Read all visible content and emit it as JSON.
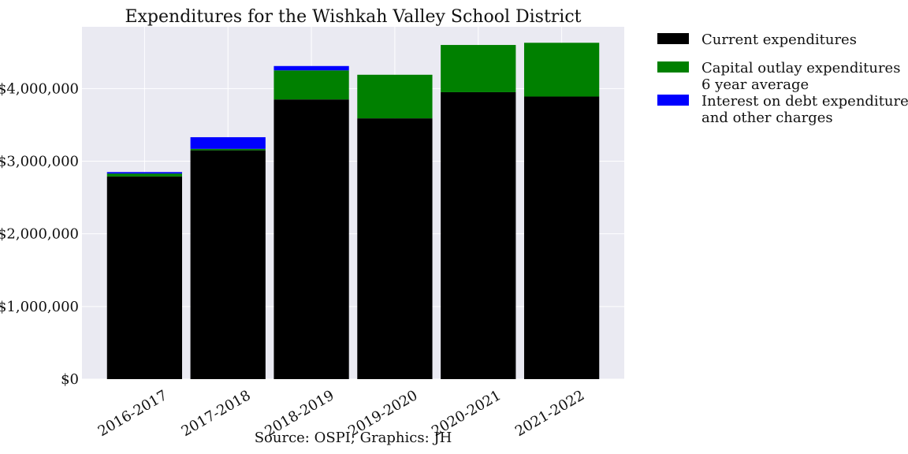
{
  "chart_data": {
    "type": "bar",
    "stacked": true,
    "title": "Expenditures for the Wishkah Valley School District",
    "caption": "Source: OSPI; Graphics: JH",
    "xlabel": "",
    "ylabel": "",
    "categories": [
      "2016-2017",
      "2017-2018",
      "2018-2019",
      "2019-2020",
      "2020-2021",
      "2021-2022"
    ],
    "series": [
      {
        "name_lines": [
          "Current expenditures"
        ],
        "color": "#000000",
        "values": [
          2790000,
          3150000,
          3850000,
          3590000,
          3950000,
          3890000
        ]
      },
      {
        "name_lines": [
          "Capital outlay expenditures",
          "6 year average"
        ],
        "color": "#008000",
        "values": [
          40000,
          20000,
          400000,
          600000,
          650000,
          740000
        ]
      },
      {
        "name_lines": [
          "Interest on debt expenditures",
          "and other charges"
        ],
        "color": "#0000ff",
        "values": [
          20000,
          160000,
          60000,
          0,
          0,
          0
        ]
      }
    ],
    "ylim": [
      0,
      4850000
    ],
    "yticks": [
      0,
      1000000,
      2000000,
      3000000,
      4000000
    ],
    "ytick_labels": [
      "$0",
      "$1,000,000",
      "$2,000,000",
      "$3,000,000",
      "$4,000,000"
    ],
    "grid": true,
    "legend_position": "outside-right",
    "background_color": "#eaeaf2"
  }
}
